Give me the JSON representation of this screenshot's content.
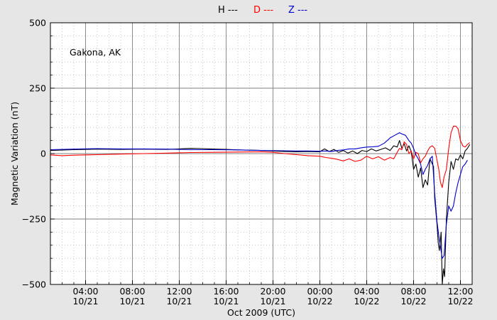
{
  "legend": [
    {
      "label": "H ---",
      "color": "#000000"
    },
    {
      "label": "D ---",
      "color": "#ff0000"
    },
    {
      "label": "Z ---",
      "color": "#0000cc"
    }
  ],
  "chart_data": {
    "type": "line",
    "annotation": "Gakona, AK",
    "xlabel": "Oct 2009 (UTC)",
    "ylabel": "Magnetic Variation (nT)",
    "xlim": [
      1.0,
      37.0
    ],
    "ylim": [
      -500,
      500
    ],
    "yticks": [
      {
        "value": 500,
        "label": "500"
      },
      {
        "value": 250,
        "label": "250"
      },
      {
        "value": 0,
        "label": "0"
      },
      {
        "value": -250,
        "label": "−250"
      },
      {
        "value": -500,
        "label": "−500"
      }
    ],
    "xticks": [
      {
        "value": 4,
        "time": "04:00",
        "date": "10/21"
      },
      {
        "value": 8,
        "time": "08:00",
        "date": "10/21"
      },
      {
        "value": 12,
        "time": "12:00",
        "date": "10/21"
      },
      {
        "value": 16,
        "time": "16:00",
        "date": "10/21"
      },
      {
        "value": 20,
        "time": "20:00",
        "date": "10/21"
      },
      {
        "value": 24,
        "time": "00:00",
        "date": "10/22"
      },
      {
        "value": 28,
        "time": "04:00",
        "date": "10/22"
      },
      {
        "value": 32,
        "time": "08:00",
        "date": "10/22"
      },
      {
        "value": 36,
        "time": "12:00",
        "date": "10/22"
      }
    ],
    "grid": true,
    "series": [
      {
        "name": "H",
        "color": "#000000",
        "points": [
          [
            1.0,
            12
          ],
          [
            3,
            15
          ],
          [
            5,
            17
          ],
          [
            7,
            16
          ],
          [
            9,
            17
          ],
          [
            11,
            16
          ],
          [
            12,
            18
          ],
          [
            13,
            20
          ],
          [
            14,
            19
          ],
          [
            15,
            17
          ],
          [
            16,
            16
          ],
          [
            17,
            14
          ],
          [
            18,
            13
          ],
          [
            19,
            12
          ],
          [
            20,
            10
          ],
          [
            21,
            8
          ],
          [
            22,
            7
          ],
          [
            23,
            8
          ],
          [
            24,
            7
          ],
          [
            24.4,
            18
          ],
          [
            24.8,
            8
          ],
          [
            25.2,
            16
          ],
          [
            25.6,
            5
          ],
          [
            26.0,
            12
          ],
          [
            26.4,
            2
          ],
          [
            26.8,
            10
          ],
          [
            27.2,
            0
          ],
          [
            27.6,
            12
          ],
          [
            28.0,
            8
          ],
          [
            28.4,
            18
          ],
          [
            28.8,
            10
          ],
          [
            29.2,
            16
          ],
          [
            29.6,
            22
          ],
          [
            30.0,
            12
          ],
          [
            30.3,
            30
          ],
          [
            30.6,
            25
          ],
          [
            30.8,
            50
          ],
          [
            31.0,
            20
          ],
          [
            31.2,
            38
          ],
          [
            31.4,
            10
          ],
          [
            31.6,
            30
          ],
          [
            31.8,
            8
          ],
          [
            32.0,
            -60
          ],
          [
            32.2,
            -40
          ],
          [
            32.4,
            -90
          ],
          [
            32.6,
            -55
          ],
          [
            32.8,
            -130
          ],
          [
            33.0,
            -100
          ],
          [
            33.2,
            -120
          ],
          [
            33.4,
            -20
          ],
          [
            33.7,
            -50
          ],
          [
            33.8,
            -170
          ],
          [
            34.0,
            -270
          ],
          [
            34.1,
            -340
          ],
          [
            34.2,
            -370
          ],
          [
            34.35,
            -300
          ],
          [
            34.45,
            -500
          ],
          [
            34.55,
            -440
          ],
          [
            34.65,
            -470
          ],
          [
            34.8,
            -250
          ],
          [
            35.0,
            -110
          ],
          [
            35.2,
            -30
          ],
          [
            35.4,
            -60
          ],
          [
            35.6,
            -20
          ],
          [
            35.8,
            -25
          ],
          [
            36.0,
            -5
          ],
          [
            36.2,
            -20
          ],
          [
            36.4,
            10
          ],
          [
            36.6,
            20
          ],
          [
            36.8,
            35
          ]
        ]
      },
      {
        "name": "D",
        "color": "#ff0000",
        "points": [
          [
            1.0,
            -5
          ],
          [
            2,
            -8
          ],
          [
            3,
            -6
          ],
          [
            5,
            -4
          ],
          [
            7,
            -2
          ],
          [
            9,
            0
          ],
          [
            11,
            2
          ],
          [
            13,
            4
          ],
          [
            15,
            5
          ],
          [
            17,
            6
          ],
          [
            19,
            7
          ],
          [
            20,
            5
          ],
          [
            21,
            0
          ],
          [
            22,
            -4
          ],
          [
            23,
            -8
          ],
          [
            24,
            -10
          ],
          [
            24.5,
            -15
          ],
          [
            25,
            -18
          ],
          [
            25.5,
            -22
          ],
          [
            26,
            -28
          ],
          [
            26.5,
            -20
          ],
          [
            27,
            -30
          ],
          [
            27.5,
            -25
          ],
          [
            28,
            -10
          ],
          [
            28.5,
            -20
          ],
          [
            29,
            -12
          ],
          [
            29.5,
            -25
          ],
          [
            30,
            -15
          ],
          [
            30.3,
            -20
          ],
          [
            30.6,
            5
          ],
          [
            30.8,
            20
          ],
          [
            31.0,
            15
          ],
          [
            31.2,
            45
          ],
          [
            31.4,
            35
          ],
          [
            31.6,
            0
          ],
          [
            31.8,
            10
          ],
          [
            32.0,
            -20
          ],
          [
            32.2,
            5
          ],
          [
            32.4,
            0
          ],
          [
            32.6,
            -35
          ],
          [
            32.8,
            -20
          ],
          [
            33.0,
            -10
          ],
          [
            33.2,
            10
          ],
          [
            33.4,
            25
          ],
          [
            33.6,
            30
          ],
          [
            33.8,
            20
          ],
          [
            34.0,
            -25
          ],
          [
            34.15,
            -60
          ],
          [
            34.3,
            -110
          ],
          [
            34.45,
            -130
          ],
          [
            34.6,
            -90
          ],
          [
            34.8,
            -60
          ],
          [
            35.0,
            20
          ],
          [
            35.2,
            80
          ],
          [
            35.4,
            105
          ],
          [
            35.6,
            105
          ],
          [
            35.8,
            95
          ],
          [
            36.0,
            50
          ],
          [
            36.2,
            30
          ],
          [
            36.4,
            25
          ],
          [
            36.6,
            35
          ],
          [
            36.8,
            42
          ]
        ]
      },
      {
        "name": "Z",
        "color": "#0000cc",
        "points": [
          [
            1.0,
            15
          ],
          [
            3,
            17
          ],
          [
            5,
            19
          ],
          [
            7,
            18
          ],
          [
            9,
            18
          ],
          [
            11,
            17
          ],
          [
            13,
            15
          ],
          [
            15,
            15
          ],
          [
            17,
            14
          ],
          [
            19,
            12
          ],
          [
            21,
            11
          ],
          [
            22,
            10
          ],
          [
            23,
            10
          ],
          [
            24,
            9
          ],
          [
            24.5,
            10
          ],
          [
            25,
            8
          ],
          [
            25.5,
            12
          ],
          [
            26,
            14
          ],
          [
            26.5,
            18
          ],
          [
            27,
            18
          ],
          [
            27.5,
            22
          ],
          [
            28,
            25
          ],
          [
            28.5,
            26
          ],
          [
            29,
            28
          ],
          [
            29.5,
            40
          ],
          [
            30,
            60
          ],
          [
            30.4,
            70
          ],
          [
            30.8,
            80
          ],
          [
            31.0,
            75
          ],
          [
            31.3,
            70
          ],
          [
            31.6,
            50
          ],
          [
            31.8,
            40
          ],
          [
            32.0,
            20
          ],
          [
            32.2,
            -5
          ],
          [
            32.4,
            -20
          ],
          [
            32.6,
            -40
          ],
          [
            32.8,
            -80
          ],
          [
            33.0,
            -60
          ],
          [
            33.2,
            -45
          ],
          [
            33.4,
            -20
          ],
          [
            33.6,
            -10
          ],
          [
            33.8,
            -150
          ],
          [
            34.0,
            -260
          ],
          [
            34.2,
            -330
          ],
          [
            34.45,
            -400
          ],
          [
            34.6,
            -390
          ],
          [
            34.8,
            -270
          ],
          [
            35.0,
            -200
          ],
          [
            35.2,
            -220
          ],
          [
            35.4,
            -200
          ],
          [
            35.6,
            -150
          ],
          [
            35.8,
            -110
          ],
          [
            36.0,
            -80
          ],
          [
            36.2,
            -50
          ],
          [
            36.4,
            -40
          ],
          [
            36.6,
            -25
          ]
        ]
      }
    ]
  }
}
